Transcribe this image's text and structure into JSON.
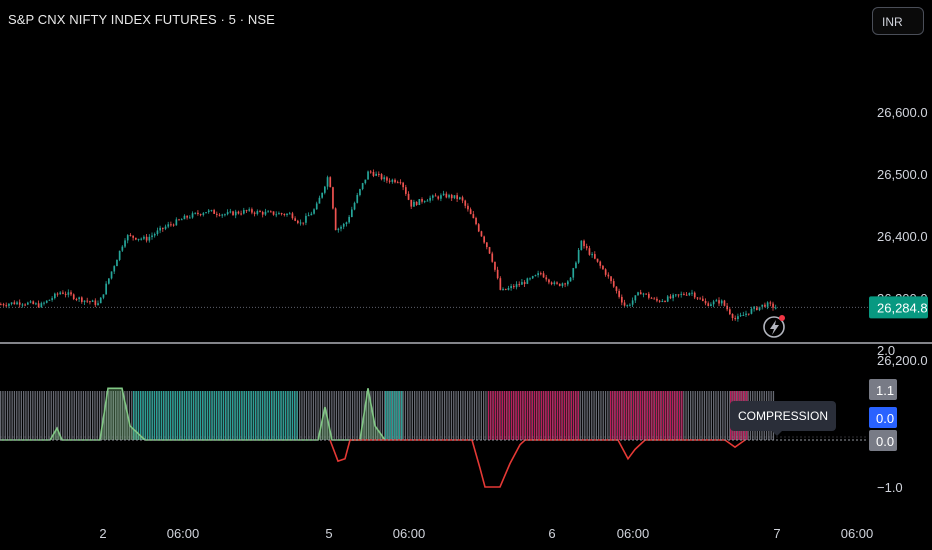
{
  "header": {
    "title": "S&P CNX NIFTY INDEX FUTURES · 5 · NSE",
    "currency": "INR"
  },
  "price_axis": {
    "ticks": [
      "26,600.0",
      "26,500.0",
      "26,400.0",
      "26,300.0",
      "26,200.0"
    ],
    "last_price": "26,284.8"
  },
  "indicator_axis": {
    "ticks": [
      "2.0",
      "−1.0"
    ],
    "badges": [
      {
        "label": "1.1",
        "color": "#787b86"
      },
      {
        "label": "0.0",
        "color": "#2962ff"
      },
      {
        "label": "0.0",
        "color": "#787b86"
      }
    ]
  },
  "time_axis": {
    "ticks": [
      "2",
      "06:00",
      "5",
      "06:00",
      "6",
      "06:00",
      "7",
      "06:00"
    ]
  },
  "tooltip": "COMPRESSION",
  "icons": {
    "alert": "lightning-alert-icon"
  },
  "colors": {
    "up": "#26a69a",
    "down": "#ef5350",
    "compression": "#787b86",
    "bull_zone": "#26a69a",
    "bear_zone": "#c2185b",
    "last_price": "#089981"
  },
  "chart_data": [
    {
      "type": "candlestick",
      "title": "S&P CNX NIFTY INDEX FUTURES · 5 · NSE",
      "x": [
        "2",
        "06:00",
        "5",
        "06:00",
        "6",
        "06:00",
        "7",
        "06:00"
      ],
      "ylim": [
        26150,
        26650
      ],
      "close_path": [
        [
          0,
          26290
        ],
        [
          20,
          26293
        ],
        [
          40,
          26288
        ],
        [
          60,
          26310
        ],
        [
          80,
          26298
        ],
        [
          98,
          26290
        ],
        [
          110,
          26340
        ],
        [
          125,
          26400
        ],
        [
          145,
          26395
        ],
        [
          165,
          26415
        ],
        [
          185,
          26430
        ],
        [
          205,
          26440
        ],
        [
          225,
          26435
        ],
        [
          245,
          26440
        ],
        [
          265,
          26437
        ],
        [
          290,
          26435
        ],
        [
          300,
          26420
        ],
        [
          315,
          26445
        ],
        [
          328,
          26500
        ],
        [
          335,
          26410
        ],
        [
          345,
          26420
        ],
        [
          358,
          26470
        ],
        [
          368,
          26505
        ],
        [
          385,
          26490
        ],
        [
          400,
          26490
        ],
        [
          410,
          26450
        ],
        [
          425,
          26460
        ],
        [
          445,
          26465
        ],
        [
          460,
          26460
        ],
        [
          475,
          26420
        ],
        [
          490,
          26370
        ],
        [
          500,
          26310
        ],
        [
          515,
          26320
        ],
        [
          530,
          26330
        ],
        [
          540,
          26340
        ],
        [
          555,
          26320
        ],
        [
          570,
          26330
        ],
        [
          580,
          26390
        ],
        [
          590,
          26370
        ],
        [
          605,
          26340
        ],
        [
          625,
          26285
        ],
        [
          640,
          26310
        ],
        [
          655,
          26295
        ],
        [
          670,
          26300
        ],
        [
          690,
          26310
        ],
        [
          705,
          26290
        ],
        [
          720,
          26295
        ],
        [
          735,
          26265
        ],
        [
          750,
          26280
        ],
        [
          765,
          26290
        ],
        [
          775,
          26285
        ]
      ],
      "last": 26284.8
    },
    {
      "type": "area",
      "name": "",
      "ylim": [
        -1.0,
        2.0
      ],
      "series": [
        {
          "name": "",
          "points": [
            [
              0,
              0
            ],
            [
              50,
              0
            ],
            [
              57,
              0.25
            ],
            [
              62,
              0
            ],
            [
              100,
              0
            ],
            [
              108,
              1.1
            ],
            [
              122,
              1.1
            ],
            [
              130,
              0.3
            ],
            [
              145,
              0
            ],
            [
              318,
              0
            ],
            [
              325,
              0.7
            ],
            [
              332,
              0
            ],
            [
              360,
              0
            ],
            [
              368,
              1.1
            ],
            [
              375,
              0.3
            ],
            [
              385,
              0
            ]
          ]
        },
        {
          "name": "",
          "points": [
            [
              330,
              0
            ],
            [
              338,
              -0.45
            ],
            [
              345,
              -0.4
            ],
            [
              350,
              0
            ],
            [
              472,
              0
            ],
            [
              480,
              -0.6
            ],
            [
              485,
              -1.0
            ],
            [
              500,
              -1.0
            ],
            [
              510,
              -0.5
            ],
            [
              520,
              -0.1
            ],
            [
              525,
              0
            ],
            [
              618,
              0
            ],
            [
              628,
              -0.4
            ],
            [
              635,
              -0.2
            ],
            [
              645,
              0
            ],
            [
              725,
              0
            ],
            [
              735,
              -0.15
            ],
            [
              745,
              0
            ]
          ]
        }
      ],
      "zones": [
        {
          "label": "compression",
          "from": 0,
          "to": 775,
          "color": "#787b86"
        },
        {
          "label": "bull",
          "from": 133,
          "to": 298,
          "color": "#26a69a"
        },
        {
          "label": "bull",
          "from": 385,
          "to": 402,
          "color": "#26a69a"
        },
        {
          "label": "bear",
          "from": 488,
          "to": 578,
          "color": "#c2185b"
        },
        {
          "label": "bear",
          "from": 610,
          "to": 683,
          "color": "#c2185b"
        },
        {
          "label": "bear",
          "from": 730,
          "to": 748,
          "color": "#c2185b"
        }
      ]
    }
  ]
}
